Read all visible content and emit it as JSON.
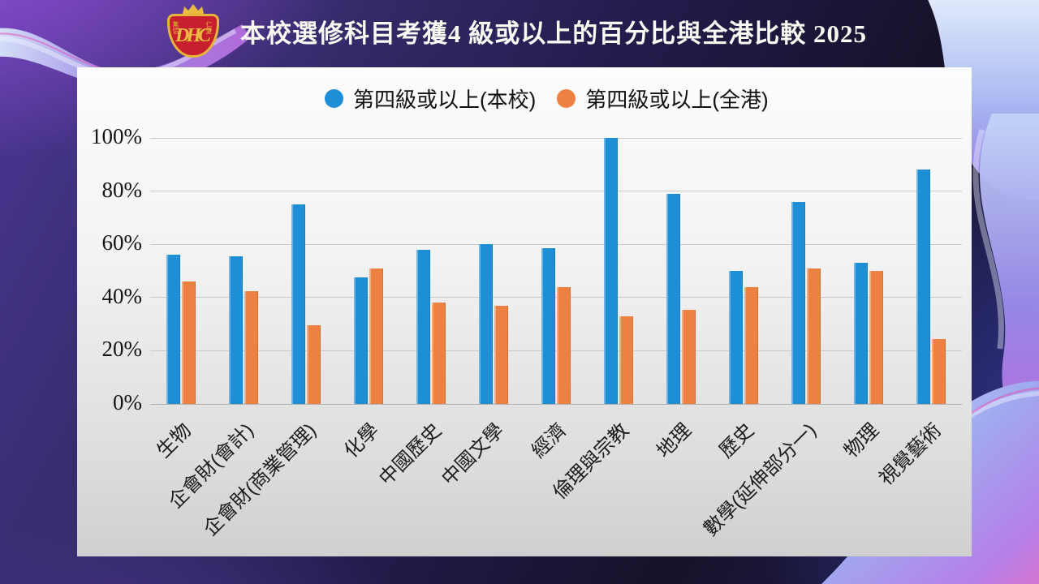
{
  "header": {
    "title": "本校選修科目考獲4 級或以上的百分比與全港比較 2025",
    "emblem": {
      "monogram": "DHC",
      "motto_left": "篤信",
      "motto_right": "仁愛"
    }
  },
  "colors": {
    "school_bar": "#1E8FD6",
    "hk_bar": "#ED8142",
    "panel_top": "#fdfdfd",
    "panel_bottom": "#cfcfcf",
    "background_purple": "#4b3795"
  },
  "chart_data": {
    "type": "bar",
    "title": "本校選修科目考獲4 級或以上的百分比與全港比較 2025",
    "categories": [
      "生物",
      "企會財(會計)",
      "企會財(商業管理)",
      "化學",
      "中國歷史",
      "中國文學",
      "經濟",
      "倫理與宗教",
      "地理",
      "歷史",
      "數學(延伸部分一)",
      "物理",
      "視覺藝術"
    ],
    "series": [
      {
        "name": "第四級或以上(本校)",
        "color": "#1E8FD6",
        "values": [
          56,
          55.5,
          75,
          47.5,
          58,
          60,
          58.5,
          100,
          79,
          50,
          76,
          53,
          88
        ]
      },
      {
        "name": "第四級或以上(全港)",
        "color": "#ED8142",
        "values": [
          46,
          42.5,
          29.5,
          51,
          38,
          37,
          44,
          33,
          35.5,
          44,
          51,
          50,
          24.5
        ]
      }
    ],
    "xlabel": "",
    "ylabel": "",
    "ylim": [
      0,
      100
    ],
    "yticks": [
      "0%",
      "20%",
      "40%",
      "60%",
      "80%",
      "100%"
    ],
    "grid": true,
    "legend_position": "top-center"
  }
}
